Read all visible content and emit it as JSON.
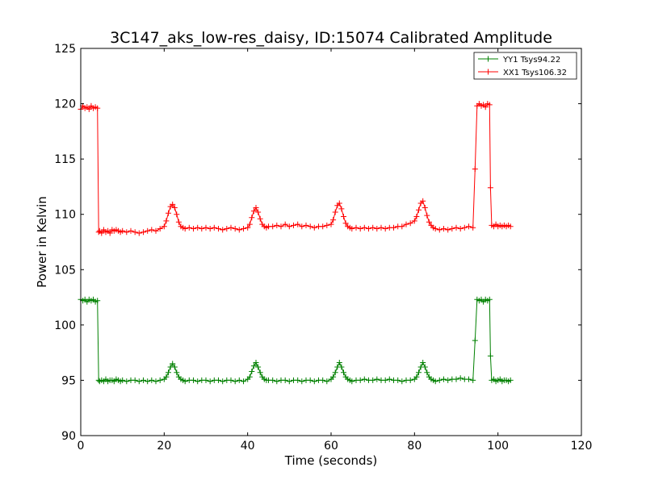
{
  "chart_data": {
    "type": "line",
    "title": "3C147_aks_low-res_daisy, ID:15074 Calibrated Amplitude",
    "xlabel": "Time (seconds)",
    "ylabel": "Power in Kelvin",
    "xlim": [
      0,
      120
    ],
    "ylim": [
      90,
      125
    ],
    "xticks": [
      "0",
      "20",
      "40",
      "60",
      "80",
      "100",
      "120"
    ],
    "yticks": [
      "90",
      "95",
      "100",
      "105",
      "110",
      "115",
      "120",
      "125"
    ],
    "grid": false,
    "legend_position": "top-right",
    "series": [
      {
        "name": "YY1 Tsys94.22",
        "color": "#008000",
        "x": [
          0,
          0.5,
          1,
          1.5,
          2,
          2.5,
          3,
          3.5,
          4,
          4.3,
          4.5,
          5,
          5.5,
          6,
          6.5,
          7,
          7.5,
          8,
          8.5,
          9,
          9.5,
          10,
          11,
          12,
          13,
          14,
          15,
          16,
          17,
          18,
          19,
          20,
          20.5,
          21,
          21.5,
          22,
          22.5,
          23,
          23.5,
          24,
          24.5,
          25,
          26,
          27,
          28,
          29,
          30,
          31,
          32,
          33,
          34,
          35,
          36,
          37,
          38,
          39,
          40,
          40.5,
          41,
          41.5,
          42,
          42.5,
          43,
          43.5,
          44,
          44.5,
          45,
          46,
          47,
          48,
          49,
          50,
          51,
          52,
          53,
          54,
          55,
          56,
          57,
          58,
          59,
          60,
          60.5,
          61,
          61.5,
          62,
          62.5,
          63,
          63.5,
          64,
          64.5,
          65,
          66,
          67,
          68,
          69,
          70,
          71,
          72,
          73,
          74,
          75,
          76,
          77,
          78,
          79,
          80,
          80.5,
          81,
          81.5,
          82,
          82.5,
          83,
          83.5,
          84,
          84.5,
          85,
          86,
          87,
          88,
          89,
          90,
          91,
          92,
          93,
          94,
          94.5,
          95,
          95.5,
          96,
          96.5,
          97,
          97.5,
          98,
          98.2,
          98.5,
          99,
          99.5,
          100,
          100.5,
          101,
          101.5,
          102,
          102.5,
          103
        ],
        "values": [
          102.3,
          102.2,
          102.3,
          102.1,
          102.3,
          102.2,
          102.3,
          102.1,
          102.2,
          95.0,
          94.9,
          95.0,
          94.9,
          95.1,
          94.9,
          95.0,
          95.0,
          94.9,
          95.1,
          95.0,
          94.9,
          95.0,
          94.9,
          95.0,
          95.0,
          94.9,
          95.0,
          94.9,
          95.0,
          94.9,
          95.0,
          95.1,
          95.3,
          95.7,
          96.2,
          96.5,
          96.2,
          95.7,
          95.3,
          95.1,
          95.0,
          94.9,
          95.0,
          95.0,
          94.9,
          95.0,
          95.0,
          94.9,
          95.0,
          95.0,
          94.9,
          95.0,
          95.0,
          94.9,
          95.0,
          94.9,
          95.1,
          95.3,
          95.8,
          96.3,
          96.6,
          96.2,
          95.7,
          95.3,
          95.1,
          95.0,
          95.0,
          95.0,
          94.9,
          95.0,
          95.0,
          94.9,
          95.0,
          95.0,
          94.9,
          95.0,
          95.0,
          94.9,
          95.0,
          95.0,
          94.9,
          95.1,
          95.3,
          95.7,
          96.2,
          96.6,
          96.2,
          95.7,
          95.3,
          95.1,
          95.0,
          94.9,
          95.0,
          95.0,
          95.1,
          95.0,
          95.0,
          95.1,
          95.0,
          95.0,
          95.1,
          95.0,
          95.0,
          94.9,
          95.0,
          95.0,
          95.1,
          95.3,
          95.7,
          96.2,
          96.6,
          96.2,
          95.7,
          95.3,
          95.1,
          95.0,
          94.9,
          95.0,
          95.1,
          95.0,
          95.1,
          95.1,
          95.2,
          95.1,
          95.1,
          95.0,
          98.6,
          102.3,
          102.2,
          102.3,
          102.1,
          102.3,
          102.2,
          102.3,
          97.2,
          95.0,
          95.1,
          94.9,
          95.0,
          95.1,
          94.9,
          95.0,
          95.0,
          94.9,
          95.0
        ]
      },
      {
        "name": "XX1 Tsys106.32",
        "color": "#ff0000",
        "x": [
          0,
          0.5,
          1,
          1.5,
          2,
          2.5,
          3,
          3.5,
          4,
          4.3,
          4.5,
          5,
          5.5,
          6,
          6.5,
          7,
          7.5,
          8,
          8.5,
          9,
          9.5,
          10,
          11,
          12,
          13,
          14,
          15,
          16,
          17,
          18,
          19,
          20,
          20.5,
          21,
          21.5,
          22,
          22.5,
          23,
          23.5,
          24,
          24.5,
          25,
          26,
          27,
          28,
          29,
          30,
          31,
          32,
          33,
          34,
          35,
          36,
          37,
          38,
          39,
          40,
          40.5,
          41,
          41.5,
          42,
          42.5,
          43,
          43.5,
          44,
          44.5,
          45,
          46,
          47,
          48,
          49,
          50,
          51,
          52,
          53,
          54,
          55,
          56,
          57,
          58,
          59,
          60,
          60.5,
          61,
          61.5,
          62,
          62.5,
          63,
          63.5,
          64,
          64.5,
          65,
          66,
          67,
          68,
          69,
          70,
          71,
          72,
          73,
          74,
          75,
          76,
          77,
          78,
          79,
          80,
          80.5,
          81,
          81.5,
          82,
          82.5,
          83,
          83.5,
          84,
          84.5,
          85,
          86,
          87,
          88,
          89,
          90,
          91,
          92,
          93,
          94,
          94.5,
          95,
          95.5,
          96,
          96.5,
          97,
          97.5,
          98,
          98.2,
          98.5,
          99,
          99.5,
          100,
          100.5,
          101,
          101.5,
          102,
          102.5,
          103
        ],
        "values": [
          119.5,
          119.8,
          119.6,
          119.7,
          119.5,
          119.8,
          119.6,
          119.7,
          119.6,
          108.4,
          108.5,
          108.3,
          108.6,
          108.4,
          108.5,
          108.3,
          108.6,
          108.5,
          108.6,
          108.5,
          108.4,
          108.5,
          108.4,
          108.5,
          108.4,
          108.3,
          108.4,
          108.5,
          108.6,
          108.5,
          108.7,
          108.9,
          109.4,
          110.1,
          110.7,
          110.9,
          110.6,
          110.0,
          109.3,
          108.9,
          108.8,
          108.7,
          108.8,
          108.7,
          108.8,
          108.7,
          108.8,
          108.7,
          108.8,
          108.7,
          108.6,
          108.7,
          108.8,
          108.7,
          108.6,
          108.7,
          108.8,
          109.1,
          109.7,
          110.3,
          110.6,
          110.2,
          109.6,
          109.1,
          108.9,
          108.8,
          108.9,
          108.9,
          109.0,
          108.9,
          109.1,
          108.9,
          109.0,
          109.1,
          108.9,
          109.0,
          108.9,
          108.8,
          108.9,
          108.9,
          109.0,
          109.1,
          109.5,
          110.2,
          110.8,
          111.0,
          110.5,
          109.8,
          109.2,
          108.9,
          108.8,
          108.7,
          108.8,
          108.7,
          108.8,
          108.7,
          108.8,
          108.7,
          108.8,
          108.7,
          108.8,
          108.8,
          108.9,
          108.9,
          109.1,
          109.2,
          109.4,
          109.8,
          110.4,
          111.0,
          111.2,
          110.6,
          109.9,
          109.3,
          109.0,
          108.8,
          108.7,
          108.6,
          108.7,
          108.6,
          108.7,
          108.8,
          108.7,
          108.8,
          108.9,
          108.8,
          114.1,
          119.8,
          120.0,
          119.8,
          119.9,
          119.7,
          120.0,
          119.9,
          112.4,
          109.0,
          108.9,
          109.1,
          108.9,
          109.0,
          108.9,
          109.0,
          108.9,
          109.0,
          108.9
        ]
      }
    ]
  }
}
